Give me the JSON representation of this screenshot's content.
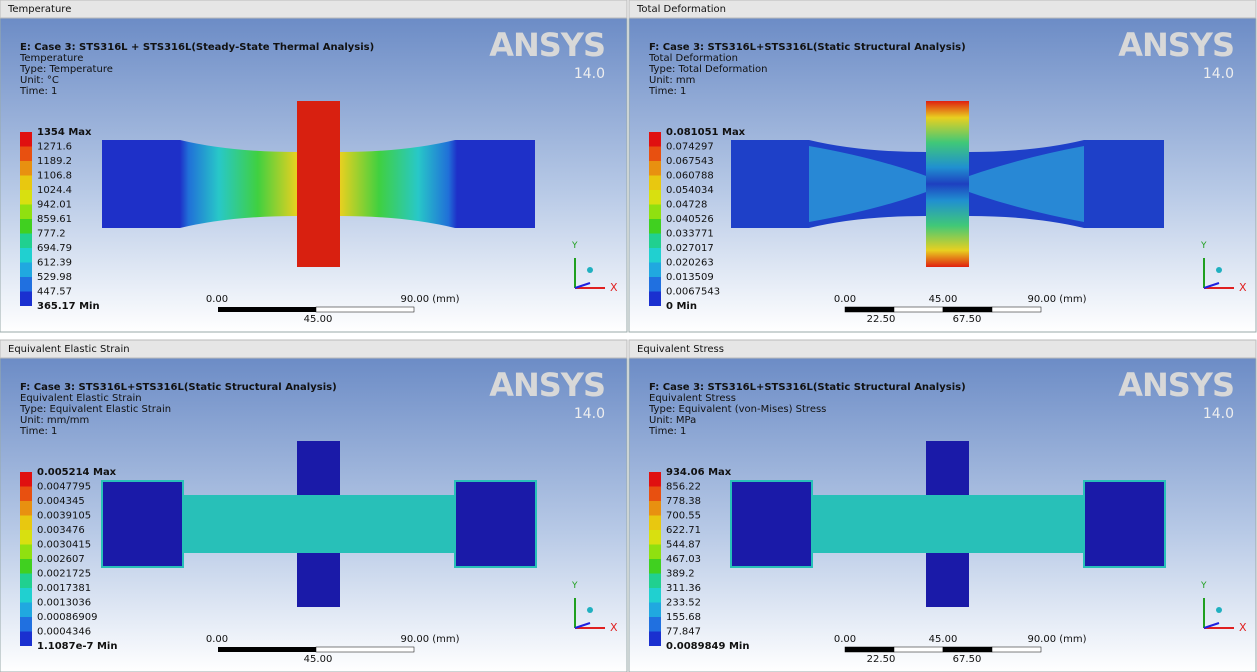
{
  "triad": {
    "y": "Y",
    "x": "X"
  },
  "panels": [
    {
      "title": "Temperature",
      "header": [
        "E: Case 3: STS316L + STS316L(Steady-State Thermal Analysis)",
        "Temperature",
        "Type: Temperature",
        "Unit: °C",
        "Time: 1"
      ],
      "logo": "ANSYS",
      "version": "14.0",
      "legend": [
        "1354 Max",
        "1271.6",
        "1189.2",
        "1106.8",
        "1024.4",
        "942.01",
        "859.61",
        "777.2",
        "694.79",
        "612.39",
        "529.98",
        "447.57",
        "365.17 Min"
      ],
      "scale": [
        "0.00",
        "90.00 (mm)",
        "45.00"
      ]
    },
    {
      "title": "Total Deformation",
      "header": [
        "F: Case 3: STS316L+STS316L(Static Structural Analysis)",
        "Total Deformation",
        "Type: Total Deformation",
        "Unit: mm",
        "Time: 1"
      ],
      "logo": "ANSYS",
      "version": "14.0",
      "legend": [
        "0.081051 Max",
        "0.074297",
        "0.067543",
        "0.060788",
        "0.054034",
        "0.04728",
        "0.040526",
        "0.033771",
        "0.027017",
        "0.020263",
        "0.013509",
        "0.0067543",
        "0 Min"
      ],
      "scale": [
        "0.00",
        "45.00",
        "90.00 (mm)",
        "22.50",
        "67.50"
      ]
    },
    {
      "title": "Equivalent Elastic Strain",
      "header": [
        "F: Case 3: STS316L+STS316L(Static Structural Analysis)",
        "Equivalent Elastic Strain",
        "Type: Equivalent Elastic Strain",
        "Unit: mm/mm",
        "Time: 1"
      ],
      "logo": "ANSYS",
      "version": "14.0",
      "legend": [
        "0.005214 Max",
        "0.0047795",
        "0.004345",
        "0.0039105",
        "0.003476",
        "0.0030415",
        "0.002607",
        "0.0021725",
        "0.0017381",
        "0.0013036",
        "0.00086909",
        "0.0004346",
        "1.1087e-7 Min"
      ],
      "scale": [
        "0.00",
        "90.00 (mm)",
        "45.00"
      ]
    },
    {
      "title": "Equivalent Stress",
      "header": [
        "F: Case 3: STS316L+STS316L(Static Structural Analysis)",
        "Equivalent Stress",
        "Type: Equivalent (von-Mises) Stress",
        "Unit: MPa",
        "Time: 1"
      ],
      "logo": "ANSYS",
      "version": "14.0",
      "legend": [
        "934.06 Max",
        "856.22",
        "778.38",
        "700.55",
        "622.71",
        "544.87",
        "467.03",
        "389.2",
        "311.36",
        "233.52",
        "155.68",
        "77.847",
        "0.0089849 Min"
      ],
      "scale": [
        "0.00",
        "45.00",
        "90.00 (mm)",
        "22.50",
        "67.50"
      ]
    }
  ]
}
